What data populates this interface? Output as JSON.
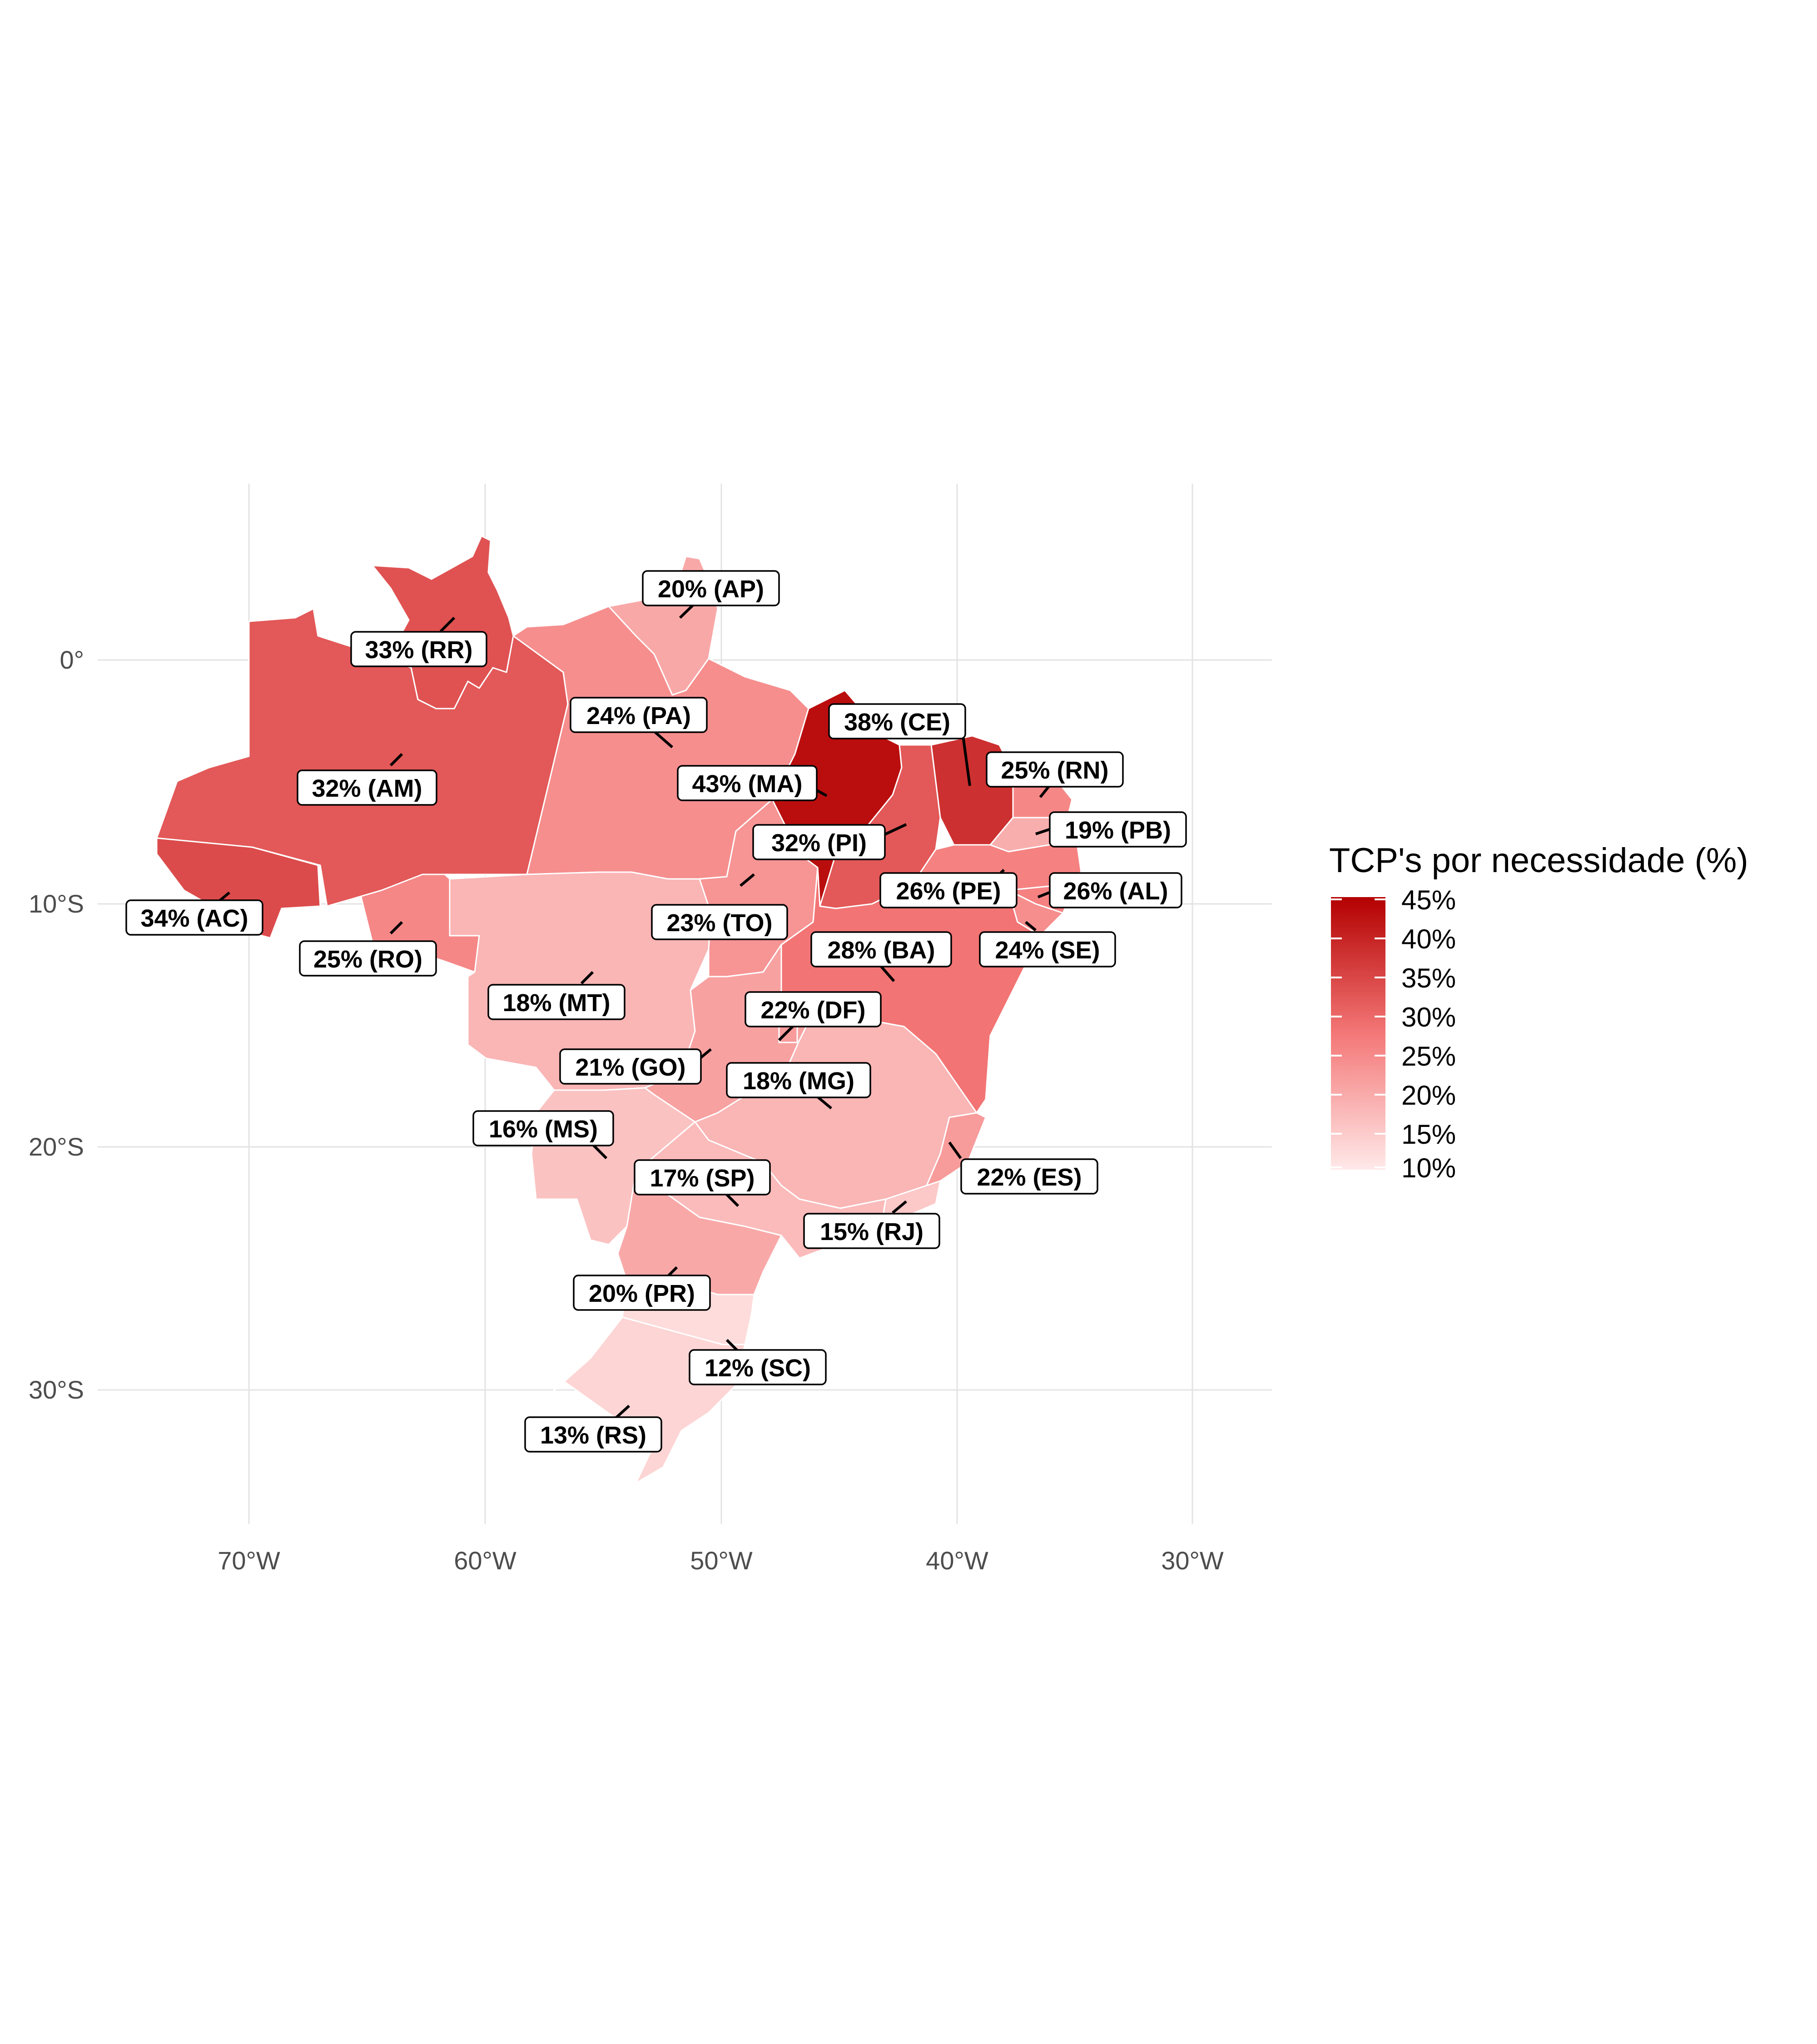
{
  "axes": {
    "x_ticks": [
      "70°W",
      "60°W",
      "50°W",
      "40°W",
      "30°W"
    ],
    "y_ticks": [
      "0°",
      "10°S",
      "20°S",
      "30°S"
    ]
  },
  "legend": {
    "title": "TCP's por necessidade (%)",
    "ticks": [
      "45%",
      "40%",
      "35%",
      "30%",
      "25%",
      "20%",
      "15%",
      "10%"
    ],
    "scale_min": 10,
    "scale_max": 45,
    "color_low": "#ffe9e9",
    "color_high": "#b30000"
  },
  "states": [
    {
      "abbr": "AP",
      "value": 20,
      "label": "20% (AP)"
    },
    {
      "abbr": "RR",
      "value": 33,
      "label": "33% (RR)"
    },
    {
      "abbr": "PA",
      "value": 24,
      "label": "24% (PA)"
    },
    {
      "abbr": "CE",
      "value": 38,
      "label": "38% (CE)"
    },
    {
      "abbr": "RN",
      "value": 25,
      "label": "25% (RN)"
    },
    {
      "abbr": "MA",
      "value": 43,
      "label": "43% (MA)"
    },
    {
      "abbr": "AM",
      "value": 32,
      "label": "32% (AM)"
    },
    {
      "abbr": "PB",
      "value": 19,
      "label": "19% (PB)"
    },
    {
      "abbr": "PI",
      "value": 32,
      "label": "32% (PI)"
    },
    {
      "abbr": "PE",
      "value": 26,
      "label": "26% (PE)"
    },
    {
      "abbr": "AL",
      "value": 26,
      "label": "26% (AL)"
    },
    {
      "abbr": "AC",
      "value": 34,
      "label": "34% (AC)"
    },
    {
      "abbr": "TO",
      "value": 23,
      "label": "23% (TO)"
    },
    {
      "abbr": "RO",
      "value": 25,
      "label": "25% (RO)"
    },
    {
      "abbr": "SE",
      "value": 24,
      "label": "24% (SE)"
    },
    {
      "abbr": "BA",
      "value": 28,
      "label": "28% (BA)"
    },
    {
      "abbr": "MT",
      "value": 18,
      "label": "18% (MT)"
    },
    {
      "abbr": "DF",
      "value": 22,
      "label": "22% (DF)"
    },
    {
      "abbr": "GO",
      "value": 21,
      "label": "21% (GO)"
    },
    {
      "abbr": "MG",
      "value": 18,
      "label": "18% (MG)"
    },
    {
      "abbr": "MS",
      "value": 16,
      "label": "16% (MS)"
    },
    {
      "abbr": "ES",
      "value": 22,
      "label": "22% (ES)"
    },
    {
      "abbr": "SP",
      "value": 17,
      "label": "17% (SP)"
    },
    {
      "abbr": "RJ",
      "value": 15,
      "label": "15% (RJ)"
    },
    {
      "abbr": "PR",
      "value": 20,
      "label": "20% (PR)"
    },
    {
      "abbr": "SC",
      "value": 12,
      "label": "12% (SC)"
    },
    {
      "abbr": "RS",
      "value": 13,
      "label": "13% (RS)"
    }
  ]
}
